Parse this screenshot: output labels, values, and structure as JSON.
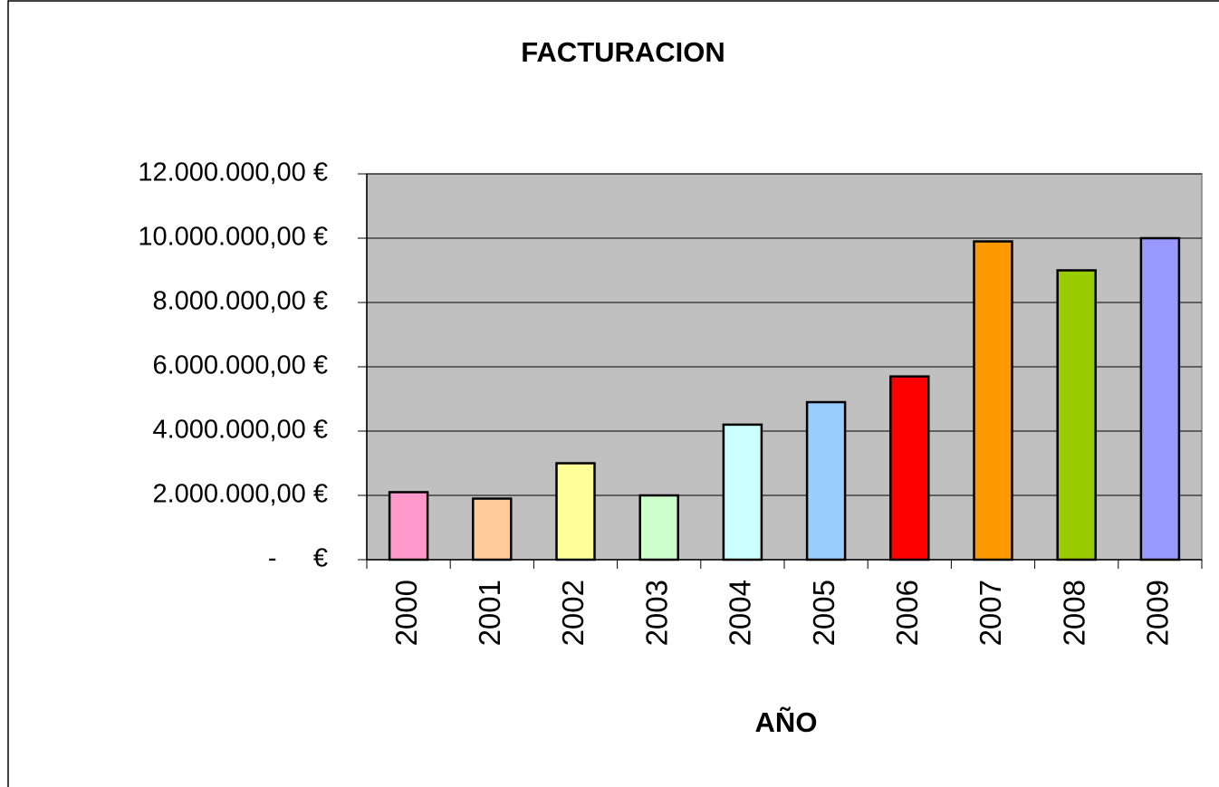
{
  "chart_data": {
    "type": "bar",
    "title": "FACTURACION",
    "x_label": "AÑO",
    "categories": [
      "2000",
      "2001",
      "2002",
      "2003",
      "2004",
      "2005",
      "2006",
      "2007",
      "2008",
      "2009"
    ],
    "values": [
      2100000,
      1900000,
      3000000,
      2000000,
      4200000,
      4900000,
      5700000,
      9900000,
      9000000,
      10000000
    ],
    "colors": [
      "#ff99cc",
      "#ffcc99",
      "#ffff99",
      "#ccffcc",
      "#ccffff",
      "#99ccff",
      "#ff0000",
      "#ff9900",
      "#99cc00",
      "#9999ff"
    ],
    "ylim": [
      0,
      12000000
    ],
    "yticks": [
      {
        "value": 0,
        "label": "-     €"
      },
      {
        "value": 2000000,
        "label": "2.000.000,00 €"
      },
      {
        "value": 4000000,
        "label": "4.000.000,00 €"
      },
      {
        "value": 6000000,
        "label": "6.000.000,00 €"
      },
      {
        "value": 8000000,
        "label": "8.000.000,00 €"
      },
      {
        "value": 10000000,
        "label": "10.000.000,00 €"
      },
      {
        "value": 12000000,
        "label": "12.000.000,00 €"
      }
    ],
    "grid": true,
    "plot_background": "#c0c0c0"
  }
}
